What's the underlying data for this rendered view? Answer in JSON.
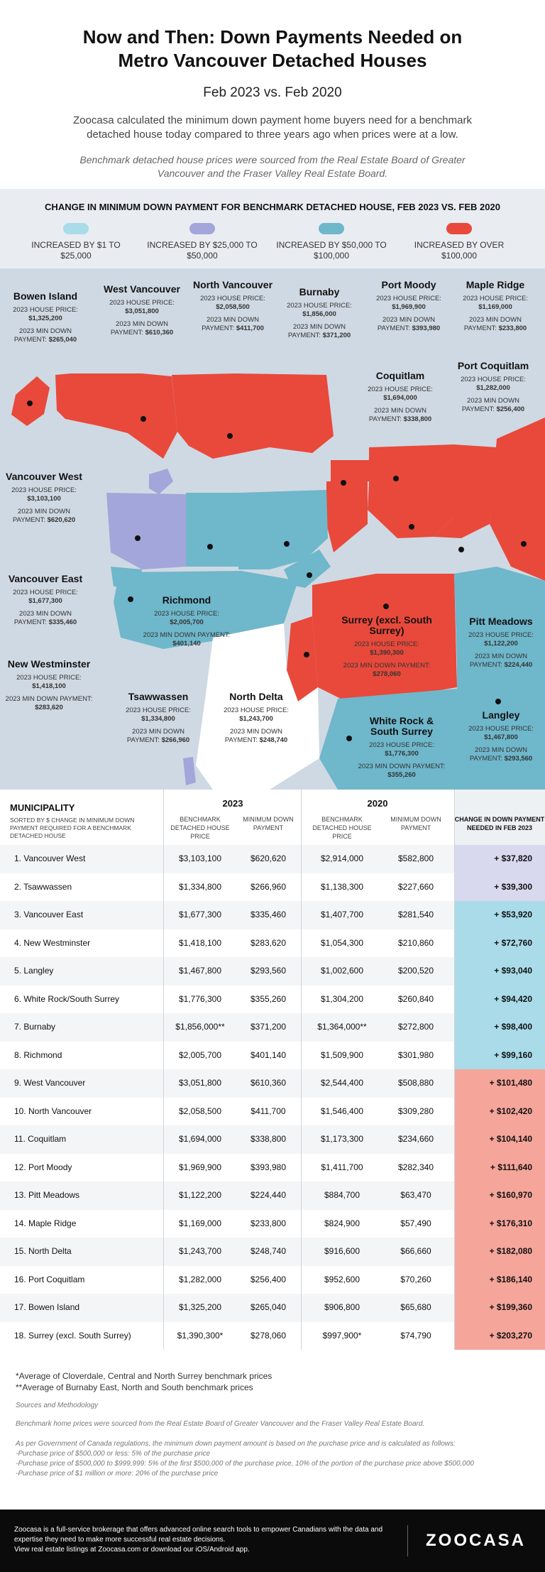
{
  "header": {
    "title_line1": "Now and Then: Down Payments Needed on",
    "title_line2": "Metro Vancouver Detached Houses",
    "subtitle": "Feb 2023 vs. Feb 2020",
    "intro": "Zoocasa calculated the minimum down payment home buyers need for a benchmark detached house today compared to three years ago when prices were at a low.",
    "source_note": "Benchmark detached house prices were sourced from the Real Estate Board of Greater Vancouver and the Fraser Valley Real Estate Board."
  },
  "legend": {
    "title": "CHANGE IN MINIMUM DOWN PAYMENT FOR BENCHMARK DETACHED HOUSE, FEB 2023 VS. FEB 2020",
    "items": [
      {
        "label": "INCREASED BY $1 TO $25,000",
        "color": "#a9dbe9"
      },
      {
        "label": "INCREASED BY $25,000 TO $50,000",
        "color": "#a3a6da"
      },
      {
        "label": "INCREASED BY $50,000 TO $100,000",
        "color": "#6fb7cb"
      },
      {
        "label": "INCREASED BY OVER $100,000",
        "color": "#e8493b"
      }
    ]
  },
  "map": {
    "price_prefix": "2023 HOUSE PRICE:",
    "down_prefix": "2023 MIN DOWN PAYMENT:",
    "labels": [
      {
        "name": "Bowen Island",
        "price": "$1,325,200",
        "down": "$265,040"
      },
      {
        "name": "West Vancouver",
        "price": "$3,051,800",
        "down": "$610,360"
      },
      {
        "name": "North Vancouver",
        "price": "$2,058,500",
        "down": "$411,700"
      },
      {
        "name": "Burnaby",
        "price": "$1,856,000",
        "down": "$371,200"
      },
      {
        "name": "Port Moody",
        "price": "$1,969,900",
        "down": "$393,980"
      },
      {
        "name": "Maple Ridge",
        "price": "$1,169,000",
        "down": "$233,800"
      },
      {
        "name": "Coquitlam",
        "price": "$1,694,000",
        "down": "$338,800"
      },
      {
        "name": "Port Coquitlam",
        "price": "$1,282,000",
        "down": "$256,400"
      },
      {
        "name": "Vancouver West",
        "price": "$3,103,100",
        "down": "$620,620"
      },
      {
        "name": "Vancouver East",
        "price": "$1,677,300",
        "down": "$335,460"
      },
      {
        "name": "Richmond",
        "price": "$2,005,700",
        "down": "$401,140"
      },
      {
        "name": "Surrey (excl. South Surrey)",
        "price": "$1,390,300",
        "down": "$278,060"
      },
      {
        "name": "Pitt Meadows",
        "price": "$1,122,200",
        "down": "$224,440"
      },
      {
        "name": "New Westminster",
        "price": "$1,418,100",
        "down": "$283,620"
      },
      {
        "name": "Tsawwassen",
        "price": "$1,334,800",
        "down": "$266,960"
      },
      {
        "name": "North Delta",
        "price": "$1,243,700",
        "down": "$248,740"
      },
      {
        "name": "White Rock & South Surrey",
        "price": "$1,776,300",
        "down": "$355,260"
      },
      {
        "name": "Langley",
        "price": "$1,467,800",
        "down": "$293,560"
      }
    ]
  },
  "table": {
    "muni_header": "MUNICIPALITY",
    "sort_note": "SORTED BY $ CHANGE IN MINIMUM DOWN PAYMENT REQUIRED FOR A BENCHMARK DETACHED HOUSE",
    "year_2023": "2023",
    "year_2020": "2020",
    "col_price": "BENCHMARK DETACHED HOUSE PRICE",
    "col_down": "MINIMUM DOWN PAYMENT",
    "col_change": "CHANGE IN DOWN PAYMENT NEEDED IN FEB 2023",
    "rows": [
      {
        "name": "1. Vancouver West",
        "p23": "$3,103,100",
        "d23": "$620,620",
        "p20": "$2,914,000",
        "d20": "$582,800",
        "change": "+ $37,820",
        "cat": 1
      },
      {
        "name": "2. Tsawwassen",
        "p23": "$1,334,800",
        "d23": "$266,960",
        "p20": "$1,138,300",
        "d20": "$227,660",
        "change": "+ $39,300",
        "cat": 1
      },
      {
        "name": "3. Vancouver East",
        "p23": "$1,677,300",
        "d23": "$335,460",
        "p20": "$1,407,700",
        "d20": "$281,540",
        "change": "+ $53,920",
        "cat": 2
      },
      {
        "name": "4. New Westminster",
        "p23": "$1,418,100",
        "d23": "$283,620",
        "p20": "$1,054,300",
        "d20": "$210,860",
        "change": "+ $72,760",
        "cat": 2
      },
      {
        "name": "5. Langley",
        "p23": "$1,467,800",
        "d23": "$293,560",
        "p20": "$1,002,600",
        "d20": "$200,520",
        "change": "+ $93,040",
        "cat": 2
      },
      {
        "name": "6. White Rock/South Surrey",
        "p23": "$1,776,300",
        "d23": "$355,260",
        "p20": "$1,304,200",
        "d20": "$260,840",
        "change": "+ $94,420",
        "cat": 2
      },
      {
        "name": "7. Burnaby",
        "p23": "$1,856,000**",
        "d23": "$371,200",
        "p20": "$1,364,000**",
        "d20": "$272,800",
        "change": "+ $98,400",
        "cat": 2
      },
      {
        "name": "8. Richmond",
        "p23": "$2,005,700",
        "d23": "$401,140",
        "p20": "$1,509,900",
        "d20": "$301,980",
        "change": "+ $99,160",
        "cat": 2
      },
      {
        "name": "9. West Vancouver",
        "p23": "$3,051,800",
        "d23": "$610,360",
        "p20": "$2,544,400",
        "d20": "$508,880",
        "change": "+ $101,480",
        "cat": 3
      },
      {
        "name": "10. North Vancouver",
        "p23": "$2,058,500",
        "d23": "$411,700",
        "p20": "$1,546,400",
        "d20": "$309,280",
        "change": "+ $102,420",
        "cat": 3
      },
      {
        "name": "11. Coquitlam",
        "p23": "$1,694,000",
        "d23": "$338,800",
        "p20": "$1,173,300",
        "d20": "$234,660",
        "change": "+ $104,140",
        "cat": 3
      },
      {
        "name": "12. Port Moody",
        "p23": "$1,969,900",
        "d23": "$393,980",
        "p20": "$1,411,700",
        "d20": "$282,340",
        "change": "+ $111,640",
        "cat": 3
      },
      {
        "name": "13. Pitt Meadows",
        "p23": "$1,122,200",
        "d23": "$224,440",
        "p20": "$884,700",
        "d20": "$63,470",
        "change": "+ $160,970",
        "cat": 3
      },
      {
        "name": "14. Maple Ridge",
        "p23": "$1,169,000",
        "d23": "$233,800",
        "p20": "$824,900",
        "d20": "$57,490",
        "change": "+ $176,310",
        "cat": 3
      },
      {
        "name": "15. North Delta",
        "p23": "$1,243,700",
        "d23": "$248,740",
        "p20": "$916,600",
        "d20": "$66,660",
        "change": "+ $182,080",
        "cat": 3
      },
      {
        "name": "16. Port Coquitlam",
        "p23": "$1,282,000",
        "d23": "$256,400",
        "p20": "$952,600",
        "d20": "$70,260",
        "change": "+ $186,140",
        "cat": 3
      },
      {
        "name": "17. Bowen Island",
        "p23": "$1,325,200",
        "d23": "$265,040",
        "p20": "$906,800",
        "d20": "$65,680",
        "change": "+ $199,360",
        "cat": 3
      },
      {
        "name": "18. Surrey (excl. South Surrey)",
        "p23": "$1,390,300*",
        "d23": "$278,060",
        "p20": "$997,900*",
        "d20": "$74,790",
        "change": "+ $203,270",
        "cat": 3
      }
    ]
  },
  "footnotes": {
    "note1": "*Average of Cloverdale, Central and North Surrey benchmark prices",
    "note2": "**Average of Burnaby East, North and South benchmark prices",
    "sources_head": "Sources and Methodology",
    "sources": "Benchmark home prices were sourced from the Real Estate Board of Greater Vancouver and the Fraser Valley Real Estate Board.",
    "method": "As per Government of Canada regulations, the minimum down payment amount is based on the purchase price and is calculated as follows:",
    "rule1": "-Purchase price of $500,000 or less: 5% of the purchase price",
    "rule2": "-Purchase price of $500,000 to $999,999: 5% of the first $500,000 of the purchase price, 10% of the portion of the purchase price above $500,000",
    "rule3": "-Purchase price of $1 million or more: 20% of the purchase price"
  },
  "footer": {
    "text1": "Zoocasa is a full-service brokerage that offers advanced online search tools to empower Canadians with the data and",
    "text2": "expertise they need to make more successful real estate decisions.",
    "text3": "View real estate listings at Zoocasa.com or download our iOS/Android app.",
    "logo": "ZOOCASA"
  },
  "chart_data": {
    "type": "table",
    "title": "CHANGE IN MINIMUM DOWN PAYMENT FOR BENCHMARK DETACHED HOUSE, FEB 2023 VS. FEB 2020",
    "categories": [
      "Vancouver West",
      "Tsawwassen",
      "Vancouver East",
      "New Westminster",
      "Langley",
      "White Rock/South Surrey",
      "Burnaby",
      "Richmond",
      "West Vancouver",
      "North Vancouver",
      "Coquitlam",
      "Port Moody",
      "Pitt Meadows",
      "Maple Ridge",
      "North Delta",
      "Port Coquitlam",
      "Bowen Island",
      "Surrey (excl. South Surrey)"
    ],
    "series": [
      {
        "name": "2023 Benchmark Detached House Price",
        "values": [
          3103100,
          1334800,
          1677300,
          1418100,
          1467800,
          1776300,
          1856000,
          2005700,
          3051800,
          2058500,
          1694000,
          1969900,
          1122200,
          1169000,
          1243700,
          1282000,
          1325200,
          1390300
        ]
      },
      {
        "name": "2023 Minimum Down Payment",
        "values": [
          620620,
          266960,
          335460,
          283620,
          293560,
          355260,
          371200,
          401140,
          610360,
          411700,
          338800,
          393980,
          224440,
          233800,
          248740,
          256400,
          265040,
          278060
        ]
      },
      {
        "name": "2020 Benchmark Detached House Price",
        "values": [
          2914000,
          1138300,
          1407700,
          1054300,
          1002600,
          1304200,
          1364000,
          1509900,
          2544400,
          1546400,
          1173300,
          1411700,
          884700,
          824900,
          916600,
          952600,
          906800,
          997900
        ]
      },
      {
        "name": "2020 Minimum Down Payment",
        "values": [
          582800,
          227660,
          281540,
          210860,
          200520,
          260840,
          272800,
          301980,
          508880,
          309280,
          234660,
          282340,
          63470,
          57490,
          66660,
          70260,
          65680,
          74790
        ]
      },
      {
        "name": "Change in Down Payment Needed in Feb 2023",
        "values": [
          37820,
          39300,
          53920,
          72760,
          93040,
          94420,
          98400,
          99160,
          101480,
          102420,
          104140,
          111640,
          160970,
          176310,
          182080,
          186140,
          199360,
          203270
        ]
      }
    ]
  }
}
